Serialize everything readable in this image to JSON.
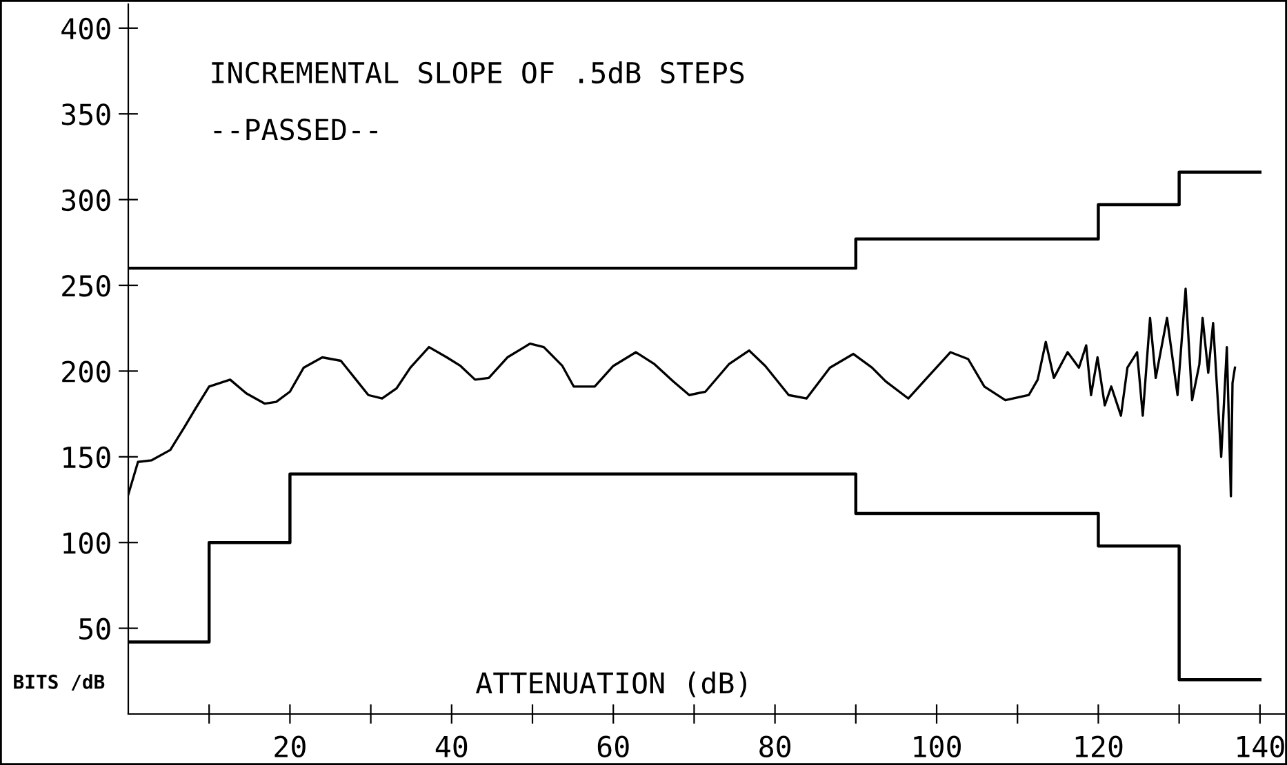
{
  "chart_data": {
    "type": "line",
    "title": "INCREMENTAL SLOPE OF .5dB STEPS",
    "annotations": [
      "--PASSED--"
    ],
    "xlabel": "ATTENUATION (dB)",
    "ylabel": "BITS /dB",
    "xlim": [
      0,
      143
    ],
    "ylim": [
      0,
      414
    ],
    "xticks": [
      {
        "value": 10,
        "label": null
      },
      20,
      {
        "value": 30,
        "label": null
      },
      40,
      {
        "value": 50,
        "label": null
      },
      60,
      {
        "value": 70,
        "label": null
      },
      80,
      {
        "value": 90,
        "label": null
      },
      100,
      {
        "value": 110,
        "label": null
      },
      120,
      {
        "value": 130,
        "label": null
      },
      140
    ],
    "yticks": [
      50,
      100,
      150,
      200,
      250,
      300,
      350,
      400
    ],
    "grid": false,
    "legend": false,
    "marker": "none",
    "line_style": "solid",
    "series": [
      {
        "type": "step",
        "color": "#000000",
        "x": [
          0,
          90,
          120,
          130,
          140
        ],
        "values": [
          260,
          277,
          297,
          316,
          316
        ]
      },
      {
        "type": "step",
        "color": "#000000",
        "x": [
          0,
          10,
          20,
          90,
          120,
          130,
          140
        ],
        "values": [
          42,
          100,
          140,
          117,
          98,
          20,
          20
        ]
      },
      {
        "color": "#000000",
        "x": [
          0,
          1.2,
          2.9,
          5.2,
          6.9,
          8.3,
          10.0,
          12.6,
          14.6,
          16.9,
          18.3,
          20.0,
          21.7,
          24.0,
          26.3,
          28.0,
          29.7,
          31.4,
          33.2,
          34.9,
          37.2,
          39.4,
          41.1,
          42.9,
          44.6,
          46.9,
          49.7,
          51.4,
          53.7,
          55.1,
          57.7,
          60.0,
          62.8,
          65.1,
          67.4,
          69.4,
          71.4,
          74.3,
          76.8,
          78.8,
          81.7,
          83.9,
          86.8,
          89.7,
          92.0,
          93.7,
          96.5,
          98.8,
          101.7,
          103.9,
          105.9,
          108.5,
          111.4,
          112.5,
          113.5,
          114.5,
          116.2,
          117.6,
          118.5,
          119.1,
          119.9,
          120.8,
          121.6,
          122.8,
          123.6,
          124.8,
          125.5,
          126.4,
          127.1,
          128.5,
          129.8,
          130.8,
          131.6,
          132.5,
          132.9,
          133.6,
          134.2,
          135.2,
          135.9,
          136.4,
          136.6,
          136.9
        ],
        "values": [
          128,
          147,
          148,
          154,
          167,
          178,
          191,
          195,
          187,
          181,
          182,
          188,
          202,
          208,
          206,
          196,
          186,
          184,
          190,
          202,
          214,
          208,
          203,
          195,
          196,
          208,
          216,
          214,
          203,
          191,
          191,
          203,
          211,
          204,
          194,
          186,
          188,
          204,
          212,
          203,
          186,
          184,
          202,
          210,
          202,
          194,
          184,
          196,
          211,
          207,
          191,
          183,
          186,
          195,
          217,
          196,
          211,
          202,
          215,
          186,
          208,
          180,
          191,
          174,
          202,
          211,
          174,
          231,
          196,
          231,
          186,
          248,
          183,
          204,
          231,
          199,
          228,
          150,
          214,
          127,
          193,
          202
        ]
      }
    ]
  }
}
